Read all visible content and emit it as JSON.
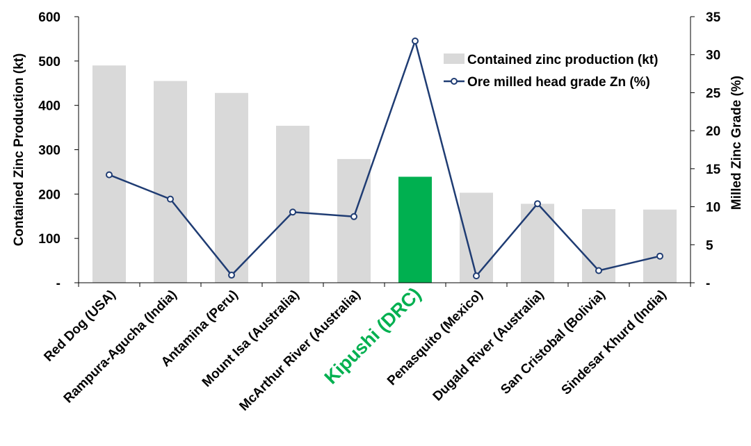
{
  "chart_data": {
    "type": "bar",
    "categories": [
      "Red Dog (USA)",
      "Rampura-Agucha (India)",
      "Antamina (Peru)",
      "Mount Isa (Australia)",
      "McArthur River (Australia)",
      "Kipushi (DRC)",
      "Penasquito (Mexico)",
      "Dugald River (Australia)",
      "San Cristobal (Bolivia)",
      "Sindesar Khurd (India)"
    ],
    "highlight_index": 5,
    "series": [
      {
        "name": "Contained zinc production (kt)",
        "type": "bar",
        "axis": "left",
        "color": "#d9d9d9",
        "highlight_color": "#00b050",
        "values": [
          490,
          455,
          428,
          354,
          279,
          239,
          203,
          178,
          166,
          165
        ]
      },
      {
        "name": "Ore milled head grade Zn (%)",
        "type": "line",
        "axis": "right",
        "color": "#1f3c73",
        "values": [
          14.2,
          11.0,
          1.0,
          9.3,
          8.7,
          31.8,
          0.9,
          10.4,
          1.6,
          3.5
        ]
      }
    ],
    "ylabel": "Contained Zinc Production (kt)",
    "y2label": "Milled Zinc Grade (%)",
    "ylim": [
      0,
      600
    ],
    "y2lim": [
      0,
      35
    ],
    "yticks": [
      "-",
      "100",
      "200",
      "300",
      "400",
      "500",
      "600"
    ],
    "y2ticks": [
      "-",
      "5",
      "10",
      "15",
      "20",
      "25",
      "30",
      "35"
    ],
    "grid": false,
    "legend_position": "top-right",
    "highlight_label_color": "#00b050"
  }
}
